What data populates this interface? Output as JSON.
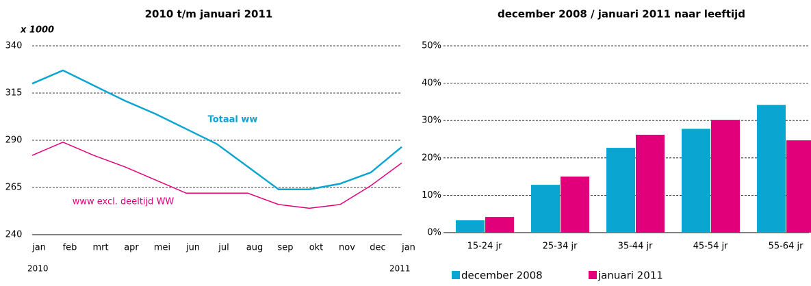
{
  "chart_data": [
    {
      "type": "line",
      "title": "2010 t/m januari 2011",
      "y_unit": "x 1000",
      "categories": [
        "jan",
        "feb",
        "mrt",
        "apr",
        "mei",
        "jun",
        "jul",
        "aug",
        "sep",
        "okt",
        "nov",
        "dec",
        "jan"
      ],
      "year_labels": [
        "2010",
        "2011"
      ],
      "ylim": [
        240,
        340
      ],
      "yticks": [
        240,
        265,
        290,
        315,
        340
      ],
      "grid": true,
      "series": [
        {
          "name": "Totaal ww",
          "color": "#0aa5d0",
          "values": [
            320,
            327,
            319,
            311,
            304,
            296,
            288,
            276,
            264,
            264,
            267,
            273,
            286.5
          ]
        },
        {
          "name": "www excl. deeltijd WW",
          "color": "#e2007a",
          "values": [
            282,
            289,
            282,
            276,
            269,
            262,
            262,
            262,
            256,
            254,
            256,
            266,
            278
          ]
        }
      ]
    },
    {
      "type": "bar",
      "title": "december 2008 / januari 2011 naar leeftijd",
      "categories": [
        "15-24 jr",
        "25-34 jr",
        "35-44 jr",
        "45-54 jr",
        "55-64 jr"
      ],
      "ylim": [
        0,
        50
      ],
      "yticks": [
        {
          "value": 0,
          "label": "0%"
        },
        {
          "value": 10,
          "label": "10%"
        },
        {
          "value": 20,
          "label": "20%"
        },
        {
          "value": 30,
          "label": "30%"
        },
        {
          "value": 40,
          "label": "40%"
        },
        {
          "value": 50,
          "label": "50%"
        }
      ],
      "grid": true,
      "series": [
        {
          "name": "december 2008",
          "color": "#0aa5d0",
          "values": [
            3.3,
            12.8,
            22.7,
            27.8,
            34.2
          ]
        },
        {
          "name": "januari 2011",
          "color": "#e2007a",
          "values": [
            4.2,
            15,
            26.2,
            30.2,
            24.7
          ]
        }
      ]
    }
  ]
}
